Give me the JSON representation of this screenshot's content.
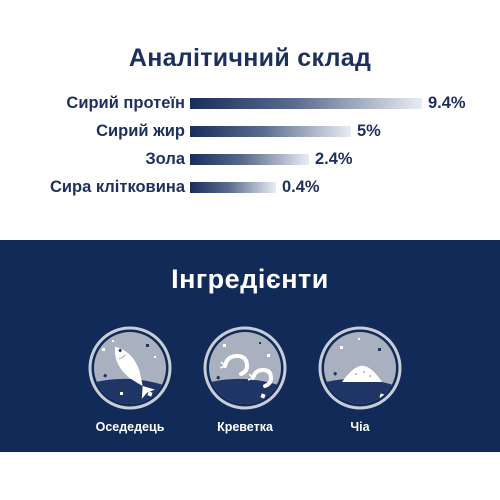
{
  "analysis": {
    "title": "Аналітичний склад",
    "rows": [
      {
        "label": "Сирий протеїн",
        "value": "9.4%",
        "level": 9.4
      },
      {
        "label": "Сирий жир",
        "value": "5%",
        "level": 5
      },
      {
        "label": "Зола",
        "value": "2.4%",
        "level": 2.4
      },
      {
        "label": "Сира клітковина",
        "value": "0.4%",
        "level": 0.4
      }
    ]
  },
  "ingredients": {
    "title": "Інгредієнти",
    "items": [
      {
        "label": "Оседедець",
        "icon": "herring-icon"
      },
      {
        "label": "Креветка",
        "icon": "shrimp-icon"
      },
      {
        "label": "Чіа",
        "icon": "chia-seeds-icon"
      }
    ]
  },
  "colors": {
    "navy": "#112a57",
    "text_navy": "#1d2f5e",
    "circle_grey": "#c8cdd6",
    "white": "#ffffff"
  }
}
